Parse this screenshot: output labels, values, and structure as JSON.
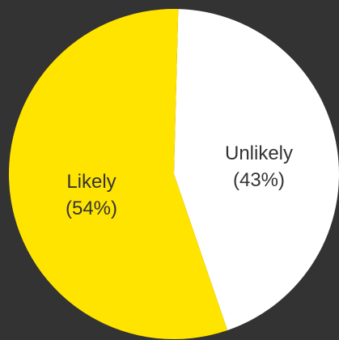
{
  "chart_data": {
    "type": "pie",
    "slices": [
      {
        "label": "Unlikely",
        "pct_text": "(43%)",
        "value": 43,
        "color": "#ffffff"
      },
      {
        "label": "Likely",
        "pct_text": "(54%)",
        "value": 54,
        "color": "#ffe400"
      }
    ],
    "background": "#333333",
    "legend": "none"
  }
}
